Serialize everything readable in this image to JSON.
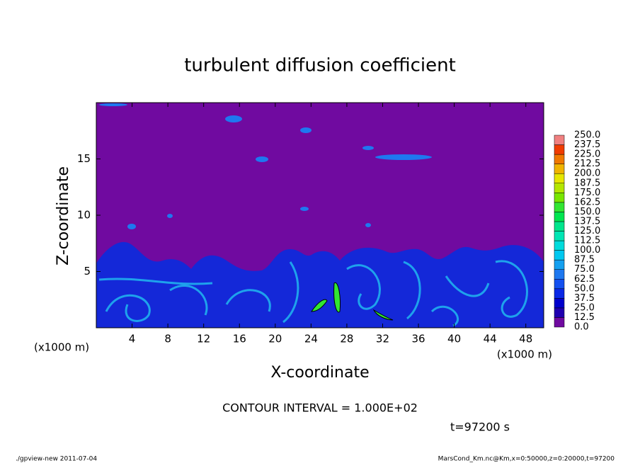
{
  "chart_data": {
    "type": "contour",
    "title": "turbulent diffusion coefficient",
    "xlabel": "X-coordinate",
    "ylabel": "Z-coordinate",
    "x_unit": "(x1000 m)",
    "y_unit": "(x1000 m)",
    "xlim": [
      0,
      50
    ],
    "xticks": [
      4,
      8,
      12,
      16,
      20,
      24,
      28,
      32,
      36,
      40,
      44,
      48
    ],
    "ylim": [
      0,
      20
    ],
    "yticks": [
      5,
      10,
      15
    ],
    "colorbar": {
      "ticks": [
        {
          "value": 0,
          "label": "0.0"
        },
        12.5,
        {
          "value": 25,
          "label": "25.0"
        },
        37.5,
        {
          "value": 50,
          "label": "50.0"
        },
        62.5,
        {
          "value": 75,
          "label": "75.0"
        },
        87.5,
        {
          "value": 100,
          "label": "100.0"
        },
        112.5,
        {
          "value": 125,
          "label": "125.0"
        },
        137.5,
        {
          "value": 150,
          "label": "150.0"
        },
        162.5,
        {
          "value": 175,
          "label": "175.0"
        },
        187.5,
        {
          "value": 200,
          "label": "200.0"
        },
        212.5,
        {
          "value": 225,
          "label": "225.0"
        },
        237.5,
        {
          "value": 250,
          "label": "250.0"
        }
      ],
      "colors": [
        "#700aa0",
        "#2000b0",
        "#0000cc",
        "#0a28e6",
        "#1450f0",
        "#1e78f0",
        "#14a0f0",
        "#00c8f0",
        "#00dcdc",
        "#00e6b4",
        "#00e68c",
        "#00e650",
        "#32e632",
        "#78e600",
        "#b4e600",
        "#e6e600",
        "#f0b400",
        "#f07800",
        "#f03c00",
        "#f08080"
      ]
    },
    "contour_interval": "CONTOUR INTERVAL = 1.000E+02",
    "time_label": "t=97200 s",
    "footer_left": "./gpview-new  2011-07-04",
    "footer_right": "MarsCond_Km.nc@Km,x=0:50000,z=0:20000,t=97200"
  }
}
